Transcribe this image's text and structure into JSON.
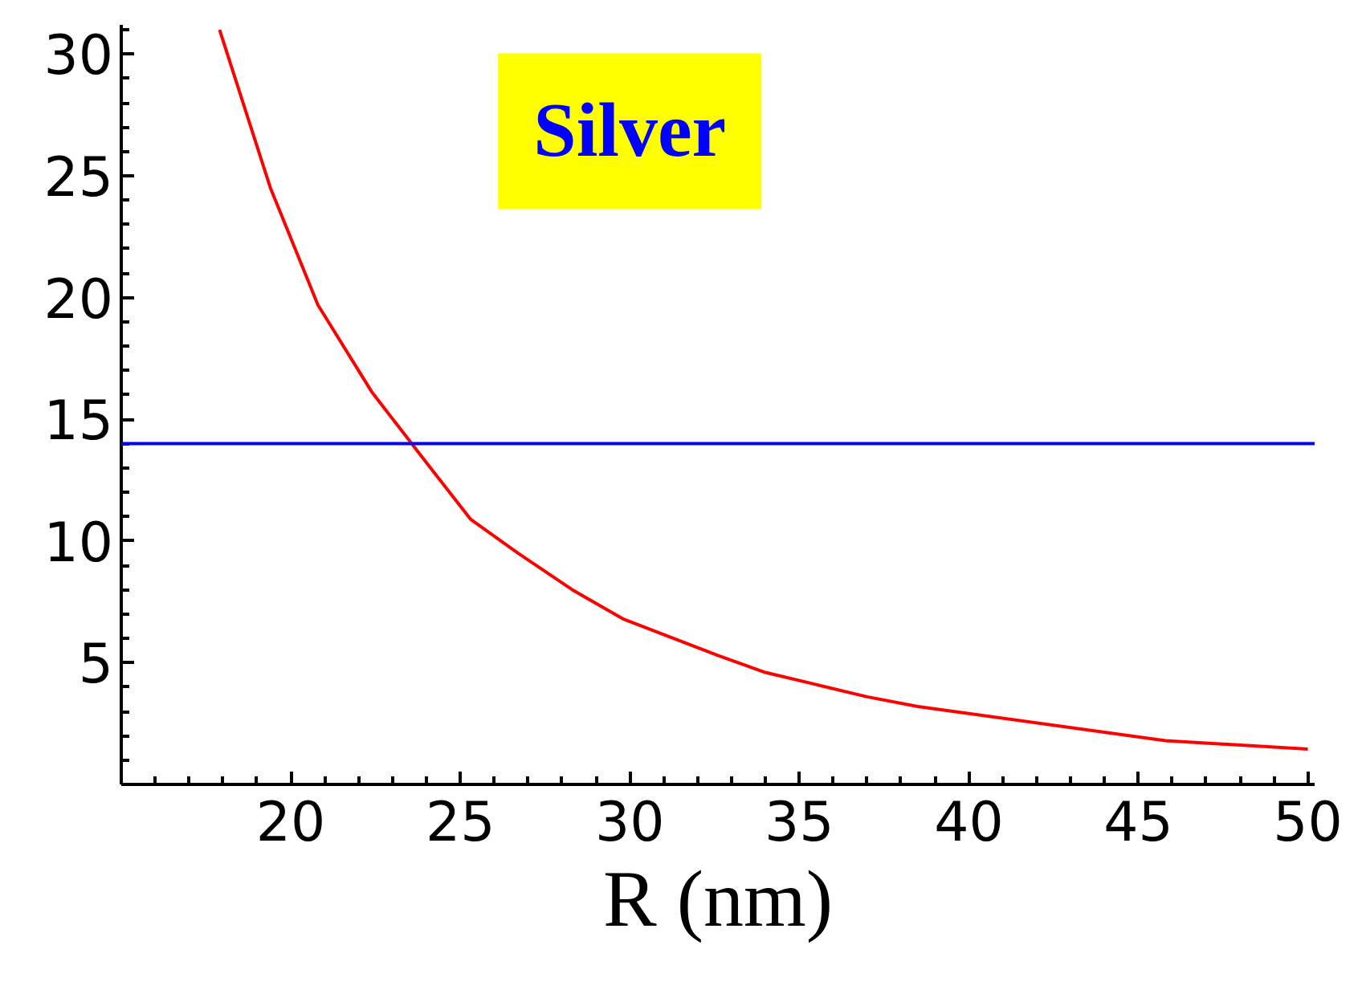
{
  "chart_data": {
    "type": "line",
    "title": "Silver",
    "xlabel": "R (nm)",
    "x": [
      17.9,
      19.4,
      20.8,
      22.4,
      23.9,
      25.3,
      26.7,
      28.3,
      29.8,
      32.6,
      34.0,
      37.0,
      38.5,
      45.8,
      50.0
    ],
    "series": [
      {
        "color": "#ff0000",
        "values": [
          31.0,
          24.5,
          19.7,
          16.1,
          13.4,
          10.9,
          9.5,
          8.0,
          6.8,
          5.3,
          4.6,
          3.6,
          3.2,
          1.8,
          1.45
        ]
      }
    ],
    "ref_lines": [
      {
        "axis": "y",
        "value": 14,
        "color": "#0000ff"
      }
    ],
    "xlim": [
      15,
      50.2
    ],
    "ylim": [
      0,
      31.2
    ],
    "xticks": [
      20,
      25,
      30,
      35,
      40,
      45,
      50
    ],
    "yticks": [
      5,
      10,
      15,
      20,
      25,
      30
    ],
    "grid": false,
    "marker": "none",
    "line_style": "solid"
  }
}
